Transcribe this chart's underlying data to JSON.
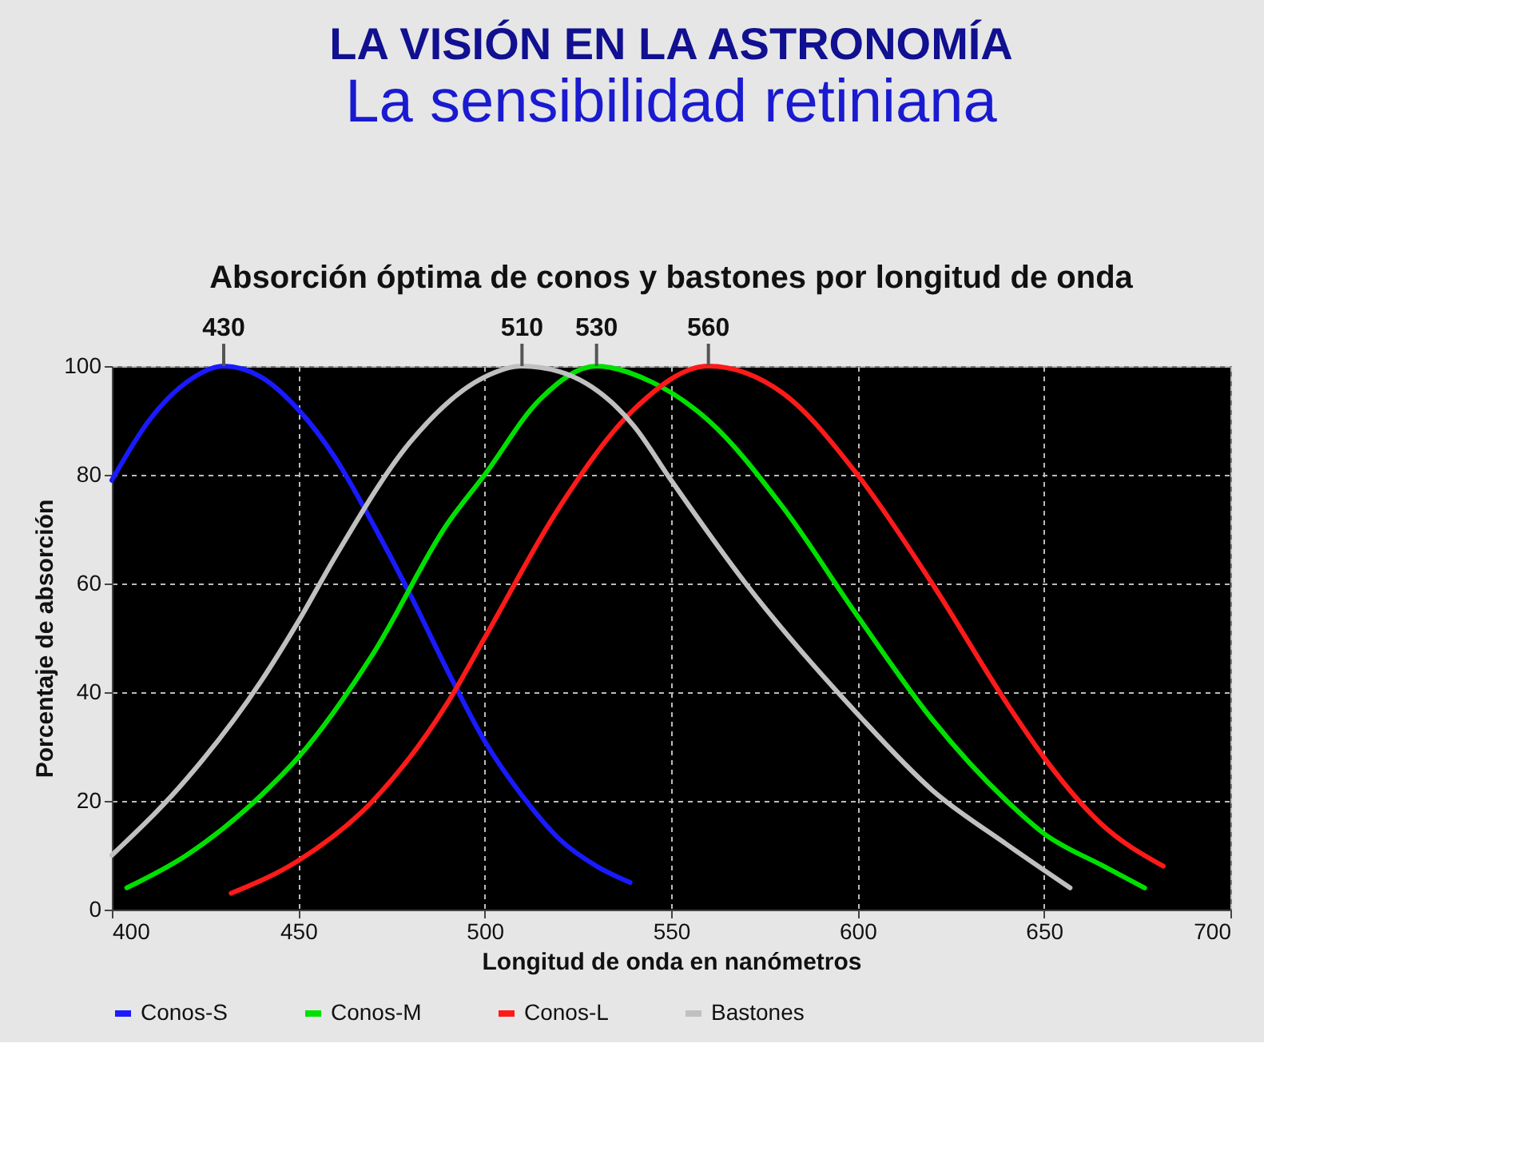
{
  "chart_data": {
    "type": "line",
    "title": "LA VISIÓN EN LA ASTRONOMÍA",
    "subtitle": "La sensibilidad retiniana",
    "xlabel": "Longitud de onda en nanómetros",
    "ylabel": "Porcentaje de absorción",
    "xlim": [
      400,
      700
    ],
    "xticks": [
      400,
      450,
      500,
      550,
      600,
      650,
      700
    ],
    "ylim": [
      0,
      100
    ],
    "yticks": [
      0,
      20,
      40,
      60,
      80,
      100
    ],
    "grid": true,
    "legend": "bottom",
    "marker": "none",
    "line_style": "solid",
    "annotations": [
      "Absorción óptima de conos y bastones por longitud de onda",
      {
        "text": "430",
        "x": 430,
        "y": 100
      },
      {
        "text": "510",
        "x": 510,
        "y": 100
      },
      {
        "text": "530",
        "x": 530,
        "y": 100
      },
      {
        "text": "560",
        "x": 560,
        "y": 100
      }
    ],
    "series": [
      {
        "name": "Conos-S",
        "color": "#1a1aff",
        "x": [
          400,
          410,
          420,
          430,
          440,
          450,
          460,
          470,
          480,
          490,
          500,
          510,
          520,
          530,
          539
        ],
        "values": [
          79,
          90,
          97,
          100,
          98,
          92,
          83,
          71,
          58,
          44,
          31,
          21,
          13,
          8,
          5
        ]
      },
      {
        "name": "Conos-M",
        "color": "#00e000",
        "x": [
          404,
          420,
          440,
          450,
          470,
          490,
          500,
          515,
          530,
          545,
          560,
          580,
          600,
          620,
          640,
          650,
          666,
          677
        ],
        "values": [
          4,
          10,
          21,
          28,
          47,
          71,
          80,
          94,
          100,
          97,
          90,
          74,
          54,
          35,
          20,
          14,
          8,
          4
        ]
      },
      {
        "name": "Conos-L",
        "color": "#ff1a1a",
        "x": [
          432,
          450,
          470,
          490,
          500,
          520,
          540,
          560,
          580,
          600,
          620,
          640,
          650,
          665,
          682
        ],
        "values": [
          3,
          9,
          20,
          38,
          50,
          74,
          92,
          100,
          95,
          80,
          60,
          38,
          28,
          16,
          8
        ]
      },
      {
        "name": "Bastones",
        "color": "#c0c0c0",
        "x": [
          400,
          420,
          440,
          450,
          460,
          480,
          500,
          510,
          520,
          540,
          550,
          570,
          600,
          620,
          640,
          657
        ],
        "values": [
          10,
          24,
          42,
          53,
          65,
          86,
          98,
          100,
          99,
          89,
          79,
          60,
          36,
          22,
          12,
          4
        ]
      }
    ]
  }
}
